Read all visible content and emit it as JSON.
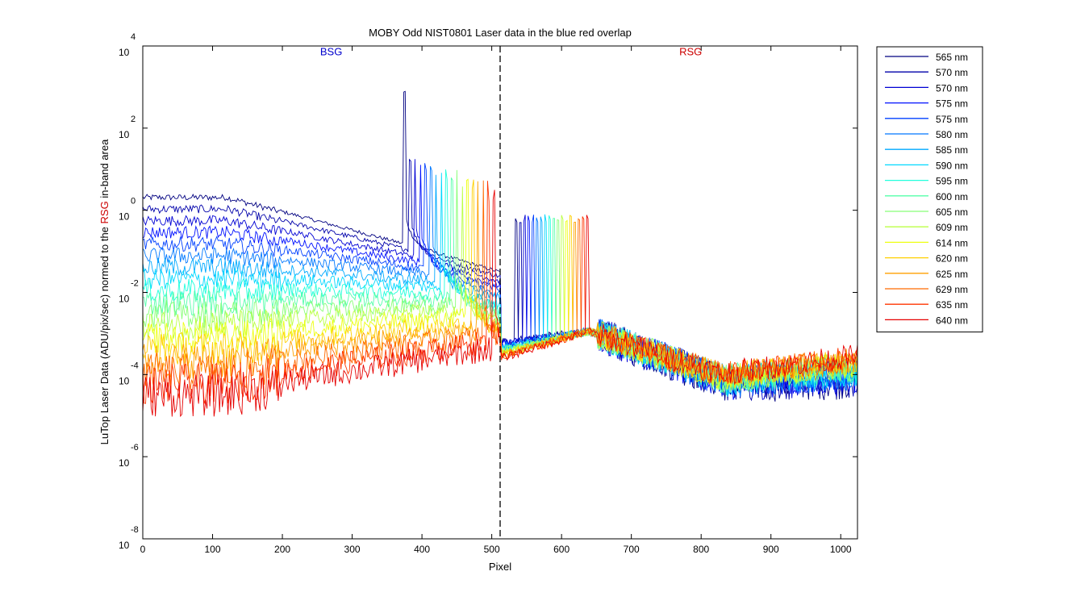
{
  "chart_data": {
    "type": "line",
    "title": "MOBY Odd NIST0801  Laser data in the blue red overlap",
    "xlabel": "Pixel",
    "ylabel_parts": [
      "LuTop Laser Data (ADU/pix/sec) normed to the ",
      "RSG",
      " in-band area"
    ],
    "xlim": [
      0,
      1024
    ],
    "ylim": [
      1e-08,
      10000.0
    ],
    "yscale": "log",
    "x_ticks": [
      0,
      100,
      200,
      300,
      400,
      500,
      600,
      700,
      800,
      900,
      1000
    ],
    "x_tick_labels": [
      "0",
      "100",
      "200",
      "300",
      "400",
      "500",
      "600",
      "700",
      "800",
      "900",
      "1000"
    ],
    "y_ticks": [
      {
        "value": 1e-08,
        "base": "10",
        "exp": "-8"
      },
      {
        "value": 1e-06,
        "base": "10",
        "exp": "-6"
      },
      {
        "value": 0.0001,
        "base": "10",
        "exp": "-4"
      },
      {
        "value": 0.01,
        "base": "10",
        "exp": "-2"
      },
      {
        "value": 1,
        "base": "10",
        "exp": "0"
      },
      {
        "value": 100,
        "base": "10",
        "exp": "2"
      },
      {
        "value": 10000,
        "base": "10",
        "exp": "4"
      }
    ],
    "grid": false,
    "legend_position": "outside-right",
    "divider_x": 512,
    "annotations": [
      {
        "text": "BSG",
        "x": 270,
        "y": 6000,
        "color": "#0000cc"
      },
      {
        "text": "RSG",
        "x": 785,
        "y": 6000,
        "color": "#cc0000"
      }
    ],
    "series": [
      {
        "name": "565 nm",
        "peak_x": 375,
        "color": "#000080"
      },
      {
        "name": "570 nm",
        "peak_x": 383,
        "color": "#0000aa"
      },
      {
        "name": "570 nm",
        "peak_x": 390,
        "color": "#0000d4"
      },
      {
        "name": "575 nm",
        "peak_x": 398,
        "color": "#0010ff"
      },
      {
        "name": "575 nm",
        "peak_x": 405,
        "color": "#0040ff"
      },
      {
        "name": "580 nm",
        "peak_x": 413,
        "color": "#0078ff"
      },
      {
        "name": "585 nm",
        "peak_x": 420,
        "color": "#00aaff"
      },
      {
        "name": "590 nm",
        "peak_x": 428,
        "color": "#00d8ff"
      },
      {
        "name": "595 nm",
        "peak_x": 435,
        "color": "#22ffdd"
      },
      {
        "name": "600 nm",
        "peak_x": 443,
        "color": "#55ffaa"
      },
      {
        "name": "605 nm",
        "peak_x": 450,
        "color": "#88ff77"
      },
      {
        "name": "609 nm",
        "peak_x": 458,
        "color": "#bbff44"
      },
      {
        "name": "614 nm",
        "peak_x": 465,
        "color": "#eeff11"
      },
      {
        "name": "620 nm",
        "peak_x": 473,
        "color": "#ffd000"
      },
      {
        "name": "625 nm",
        "peak_x": 480,
        "color": "#ffa000"
      },
      {
        "name": "629 nm",
        "peak_x": 488,
        "color": "#ff6a00"
      },
      {
        "name": "635 nm",
        "peak_x": 495,
        "color": "#ff3500"
      },
      {
        "name": "640 nm",
        "peak_x": 503,
        "color": "#e60000"
      }
    ]
  }
}
